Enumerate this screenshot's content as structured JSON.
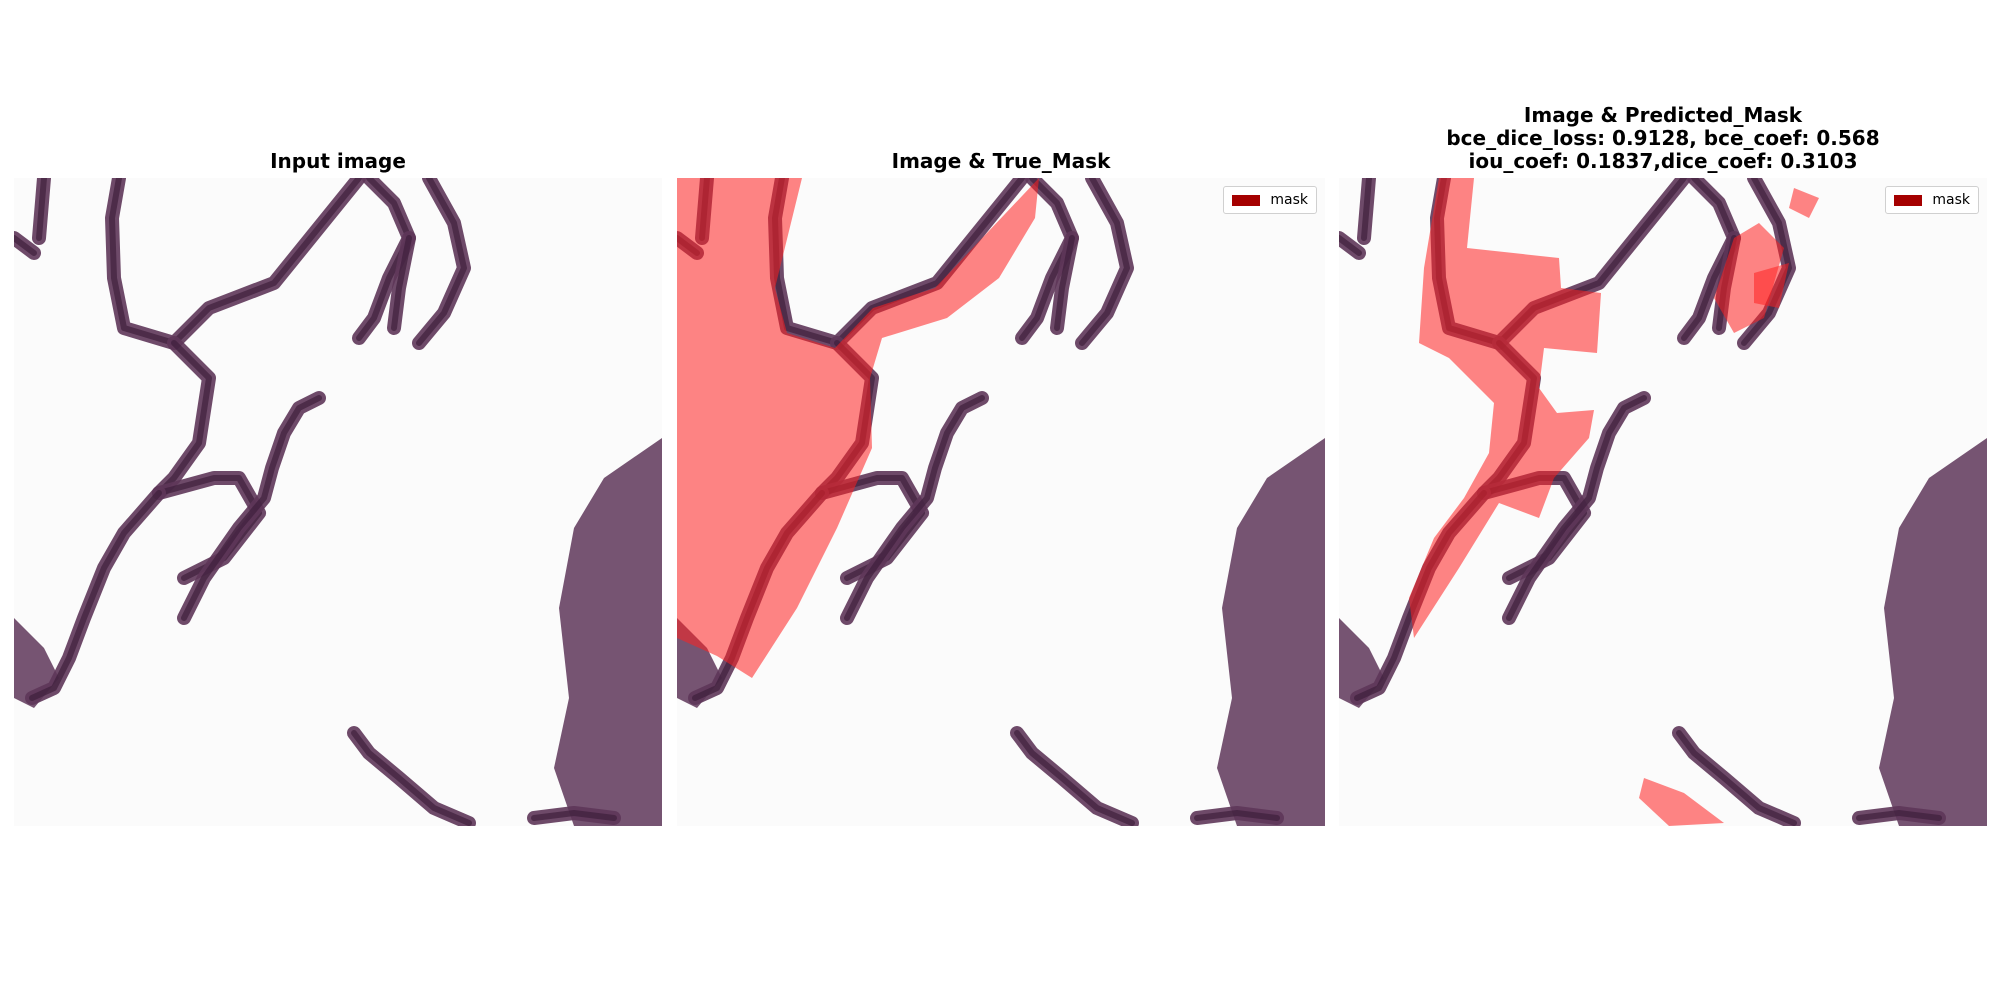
{
  "panels": [
    {
      "title": "Input image"
    },
    {
      "title": "Image & True_Mask",
      "legend": {
        "label": "mask"
      }
    },
    {
      "title_lines": [
        "Image & Predicted_Mask",
        "bce_dice_loss: 0.9128, bce_coef: 0.568",
        "iou_coef: 0.1837,dice_coef: 0.3103"
      ],
      "legend": {
        "label": "mask"
      }
    }
  ],
  "colors": {
    "tissue": "#5e3659",
    "tissue_dark": "#3e1f3c",
    "mask_overlay": "#ff2020",
    "legend_swatch": "#a50000",
    "background": "#fbfbfb"
  }
}
